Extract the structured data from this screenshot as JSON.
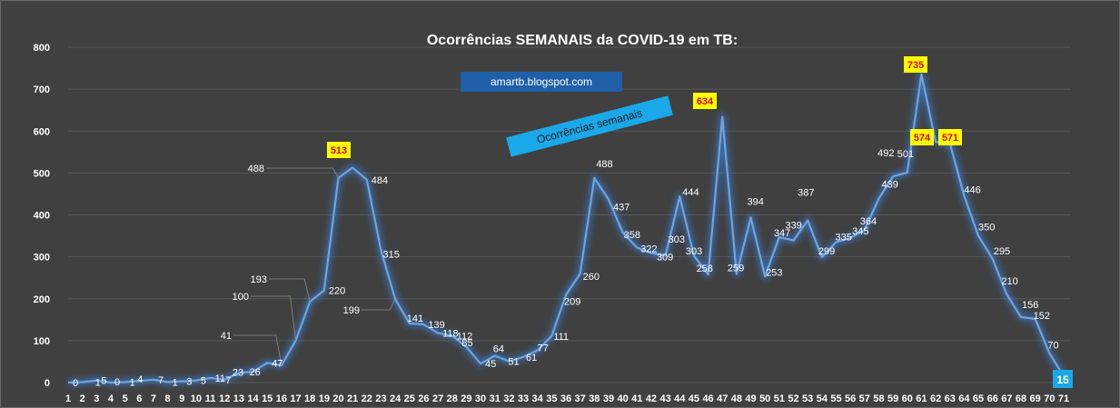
{
  "colors": {
    "background": "#404040",
    "grid": "#595959",
    "line": "#6fa4dc",
    "glow": "#3a78c8",
    "highlight_bg": "#ffff00",
    "highlight_text": "#e00000",
    "banner_bg": "#1f5fa8",
    "tag_bg": "#1aa8e8",
    "last_bg": "#1aa8e8"
  },
  "annotations": {
    "banner": "amartb.blogspot.com",
    "tag": "Ocorrências semanais"
  },
  "chart_data": {
    "type": "line",
    "title": "Ocorrências SEMANAIS da COVID-19 em TB:",
    "xlabel": "",
    "ylabel": "",
    "ylim": [
      0,
      800
    ],
    "yticks": [
      0,
      100,
      200,
      300,
      400,
      500,
      600,
      700,
      800
    ],
    "grid": true,
    "categories": [
      "1",
      "2",
      "3",
      "4",
      "5",
      "6",
      "7",
      "8",
      "9",
      "10",
      "11",
      "12",
      "13",
      "14",
      "15",
      "16",
      "17",
      "18",
      "19",
      "20",
      "21",
      "22",
      "23",
      "24",
      "25",
      "26",
      "27",
      "28",
      "29",
      "30",
      "31",
      "32",
      "33",
      "34",
      "35",
      "36",
      "37",
      "38",
      "39",
      "40",
      "41",
      "42",
      "43",
      "44",
      "45",
      "46",
      "47",
      "48",
      "49",
      "50",
      "51",
      "52",
      "53",
      "54",
      "55",
      "56",
      "57",
      "58",
      "59",
      "60",
      "61",
      "62",
      "63",
      "64",
      "65",
      "66",
      "67",
      "68",
      "69",
      "70",
      "71"
    ],
    "series": [
      {
        "name": "Ocorrências semanais",
        "values": [
          0,
          1,
          5,
          0,
          1,
          4,
          7,
          1,
          3,
          5,
          11,
          7,
          23,
          26,
          47,
          41,
          100,
          193,
          220,
          488,
          513,
          484,
          315,
          199,
          141,
          139,
          118,
          112,
          85,
          45,
          64,
          51,
          61,
          77,
          111,
          209,
          260,
          488,
          437,
          358,
          322,
          309,
          303,
          444,
          303,
          258,
          634,
          259,
          394,
          253,
          347,
          339,
          387,
          299,
          335,
          345,
          364,
          439,
          492,
          501,
          735,
          574,
          571,
          446,
          350,
          295,
          210,
          156,
          152,
          70,
          15
        ]
      }
    ],
    "highlighted_labels": [
      {
        "week": "21",
        "value": 513
      },
      {
        "week": "47",
        "value": 634
      },
      {
        "week": "61",
        "value": 735
      },
      {
        "week": "62",
        "value": 574
      },
      {
        "week": "63",
        "value": 571
      }
    ],
    "last_label": {
      "week": "71",
      "value": 15
    }
  }
}
